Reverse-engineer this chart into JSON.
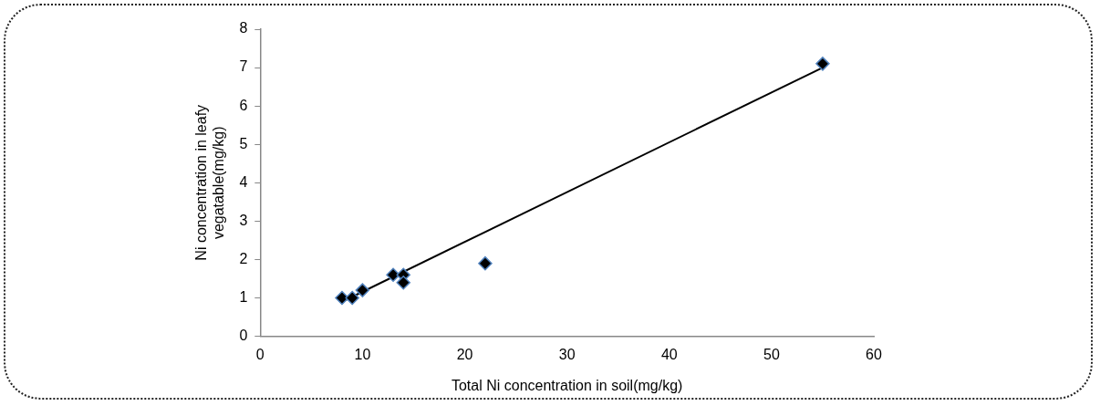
{
  "chart_data": {
    "type": "scatter",
    "xlabel": "Total Ni concentration in soil(mg/kg)",
    "ylabel": "Ni concentration in leafy\nvegatable(mg/kg)",
    "xlim": [
      0,
      60
    ],
    "xticks": [
      0,
      10,
      20,
      30,
      40,
      50,
      60
    ],
    "ylim": [
      0,
      8
    ],
    "yticks": [
      0,
      1,
      2,
      3,
      4,
      5,
      6,
      7,
      8
    ],
    "grid": false,
    "legend": false,
    "marker": "diamond",
    "series": [
      {
        "color": "#000000",
        "x": [
          8,
          9,
          10,
          13,
          14,
          14,
          22,
          55
        ],
        "values": [
          1.0,
          1.0,
          1.2,
          1.6,
          1.6,
          1.4,
          1.9,
          7.1
        ]
      },
      {
        "type": "line",
        "color": "#000000",
        "marker": "none",
        "x": [
          8,
          55
        ],
        "values": [
          0.9,
          7.0
        ]
      }
    ]
  }
}
